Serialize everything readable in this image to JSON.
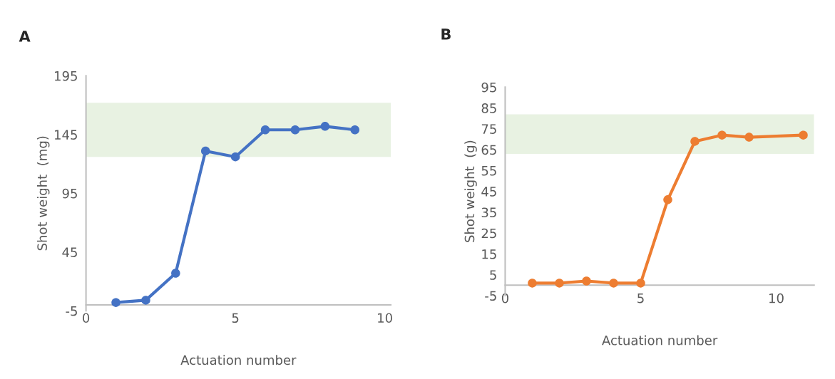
{
  "chart_data": [
    {
      "type": "line",
      "title": "A",
      "xlabel": "Actuation number",
      "ylabel": "Shot weight  (mg)",
      "x": [
        1,
        2,
        3,
        4,
        5,
        6,
        7,
        8,
        9
      ],
      "series": [
        {
          "color": "#4472c4",
          "values": [
            2,
            4,
            27,
            131,
            126,
            149,
            149,
            152,
            149
          ]
        }
      ],
      "xlim": [
        0,
        10.2
      ],
      "xticks": [
        0,
        5,
        10
      ],
      "ylim": [
        -5,
        195
      ],
      "yticks": [
        -5,
        45,
        95,
        145,
        195
      ],
      "bands": [
        {
          "axis": "y",
          "from": 126,
          "to": 172,
          "color": "#e8f2e2"
        }
      ],
      "marker": "circle",
      "line_style": "solid"
    },
    {
      "type": "line",
      "title": "B",
      "xlabel": "Actuation number",
      "ylabel": "Shot weight  (g)",
      "x": [
        1,
        2,
        3,
        4,
        5,
        6,
        7,
        8,
        9,
        11
      ],
      "series": [
        {
          "color": "#ed7d31",
          "values": [
            1,
            1,
            2,
            1,
            1,
            41,
            69,
            72,
            71,
            72
          ]
        }
      ],
      "xlim": [
        0,
        11.4
      ],
      "xticks": [
        0,
        5,
        10
      ],
      "ylim": [
        -5,
        95
      ],
      "yticks": [
        -5,
        5,
        15,
        25,
        35,
        45,
        55,
        65,
        75,
        85,
        95
      ],
      "bands": [
        {
          "axis": "y",
          "from": 63,
          "to": 82,
          "color": "#e8f2e2"
        }
      ],
      "marker": "circle",
      "line_style": "solid"
    }
  ]
}
